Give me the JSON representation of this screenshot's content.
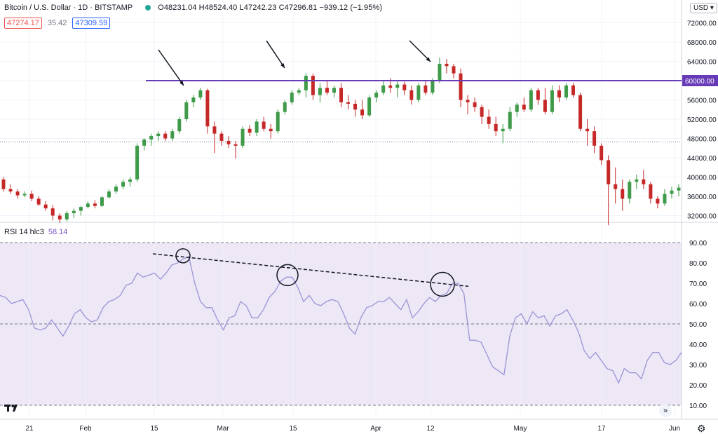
{
  "header": {
    "symbol": "Bitcoin / U.S. Dollar · 1D · BITSTAMP",
    "ohlc": "O48231.04 H48524.40 L47242.23 C47296.81 −939.12 (−1.95%)",
    "sell_price": "47274.17",
    "spread": "35.42",
    "buy_price": "47309.59",
    "currency": "USD ▾"
  },
  "price_axis": {
    "labels": [
      "72000.00",
      "68000.00",
      "64000.00",
      "60000.00",
      "56000.00",
      "52000.00",
      "48000.00",
      "44000.00",
      "40000.00",
      "36000.00",
      "32000.00"
    ],
    "highlight_label": "60000.00"
  },
  "rsi": {
    "legend": "RSI 14 hlc3",
    "value": "58.14",
    "axis_labels": [
      "90.00",
      "80.00",
      "70.00",
      "60.00",
      "50.00",
      "40.00",
      "30.00",
      "20.00",
      "10.00"
    ]
  },
  "time_axis": {
    "labels": [
      "21",
      "Feb",
      "15",
      "Mar",
      "15",
      "Apr",
      "12",
      "May",
      "17",
      "Jun"
    ]
  },
  "colors": {
    "up": "#26a69a",
    "up_body": "#3f9b49",
    "down": "#c62828",
    "resistance": "#673ab7",
    "rsi_line": "#9c94d6",
    "rsi_band": "#ede7f6"
  },
  "icons": {
    "logo": "tradingview-logo",
    "goto": "scroll-to-realtime-icon",
    "settings": "gear-icon"
  },
  "chart_data": {
    "type": "candlestick",
    "symbol": "Bitcoin / U.S. Dollar",
    "resistance_level": 60000,
    "price_range": [
      30000,
      74000
    ],
    "rsi_range": [
      0,
      100
    ],
    "rsi_levels": [
      90,
      50,
      10
    ],
    "rsi_trendline": [
      [
        83,
        260
      ],
      [
        67,
        668
      ]
    ],
    "candles": [
      [
        39500,
        40000,
        37000,
        37500
      ],
      [
        37500,
        38500,
        36500,
        37000
      ],
      [
        37000,
        37500,
        35500,
        36200
      ],
      [
        36200,
        37000,
        35800,
        36500
      ],
      [
        36500,
        37200,
        35000,
        35500
      ],
      [
        35500,
        36000,
        34000,
        34300
      ],
      [
        34300,
        35000,
        33000,
        33500
      ],
      [
        33500,
        34200,
        31000,
        32000
      ],
      [
        32000,
        32500,
        30500,
        31200
      ],
      [
        31200,
        33000,
        30800,
        32500
      ],
      [
        32500,
        33500,
        31500,
        33000
      ],
      [
        33000,
        34000,
        32000,
        33800
      ],
      [
        33800,
        35000,
        33500,
        34500
      ],
      [
        34500,
        35200,
        33500,
        34000
      ],
      [
        34000,
        36000,
        33800,
        35800
      ],
      [
        35800,
        37500,
        35500,
        37000
      ],
      [
        37000,
        38500,
        36500,
        38000
      ],
      [
        38000,
        39500,
        37500,
        39000
      ],
      [
        39000,
        40000,
        38000,
        39500
      ],
      [
        39500,
        47000,
        39000,
        46500
      ],
      [
        46500,
        48000,
        45500,
        47800
      ],
      [
        47800,
        49000,
        46500,
        48500
      ],
      [
        48500,
        49500,
        47500,
        49000
      ],
      [
        49000,
        49500,
        47500,
        48000
      ],
      [
        48000,
        50000,
        47500,
        49500
      ],
      [
        49500,
        52500,
        49000,
        52000
      ],
      [
        52000,
        56000,
        51500,
        55500
      ],
      [
        55500,
        57000,
        54500,
        56500
      ],
      [
        56500,
        58500,
        56000,
        58000
      ],
      [
        58000,
        58300,
        49000,
        50500
      ],
      [
        50500,
        51500,
        45000,
        49000
      ],
      [
        49000,
        49500,
        46500,
        47500
      ],
      [
        47500,
        48500,
        46000,
        46800
      ],
      [
        46800,
        47500,
        43800,
        46500
      ],
      [
        46500,
        50500,
        46000,
        50000
      ],
      [
        50000,
        50800,
        48500,
        49200
      ],
      [
        49200,
        52000,
        48500,
        51500
      ],
      [
        51500,
        52500,
        49500,
        50000
      ],
      [
        50000,
        51000,
        48000,
        49500
      ],
      [
        49500,
        54000,
        49000,
        53500
      ],
      [
        53500,
        56000,
        53000,
        55500
      ],
      [
        55500,
        58000,
        55000,
        57500
      ],
      [
        57500,
        58500,
        57000,
        58000
      ],
      [
        58000,
        61500,
        56500,
        61000
      ],
      [
        61000,
        61500,
        56000,
        57000
      ],
      [
        57000,
        59500,
        55500,
        58500
      ],
      [
        58500,
        60000,
        57000,
        57500
      ],
      [
        57500,
        59000,
        56500,
        58500
      ],
      [
        58500,
        59500,
        54500,
        55500
      ],
      [
        55500,
        57000,
        54000,
        55200
      ],
      [
        55200,
        56000,
        52500,
        54000
      ],
      [
        54000,
        56000,
        52000,
        52800
      ],
      [
        52800,
        57000,
        52500,
        56500
      ],
      [
        56500,
        58000,
        55500,
        57500
      ],
      [
        57500,
        60000,
        57000,
        59000
      ],
      [
        59000,
        60500,
        57500,
        58500
      ],
      [
        58500,
        60000,
        56500,
        59200
      ],
      [
        59200,
        59800,
        57000,
        58000
      ],
      [
        58000,
        59000,
        55000,
        56000
      ],
      [
        56000,
        59500,
        55500,
        59000
      ],
      [
        59000,
        60000,
        57000,
        57500
      ],
      [
        57500,
        60500,
        57000,
        60000
      ],
      [
        60000,
        64800,
        59500,
        63500
      ],
      [
        63500,
        64500,
        61500,
        63000
      ],
      [
        63000,
        63500,
        60500,
        61500
      ],
      [
        61500,
        62500,
        54500,
        56000
      ],
      [
        56000,
        57000,
        53000,
        55500
      ],
      [
        55500,
        56500,
        53500,
        54500
      ],
      [
        54500,
        55000,
        51000,
        52500
      ],
      [
        52500,
        54000,
        50000,
        51000
      ],
      [
        51000,
        52500,
        48500,
        49500
      ],
      [
        49500,
        51000,
        47000,
        50000
      ],
      [
        50000,
        54500,
        49500,
        53500
      ],
      [
        53500,
        55500,
        52500,
        55000
      ],
      [
        55000,
        56500,
        53500,
        54000
      ],
      [
        54000,
        58500,
        53500,
        58000
      ],
      [
        58000,
        58500,
        55000,
        56000
      ],
      [
        56000,
        58500,
        53000,
        53500
      ],
      [
        53500,
        59000,
        53000,
        58000
      ],
      [
        58000,
        59000,
        55500,
        56500
      ],
      [
        56500,
        59500,
        56000,
        59000
      ],
      [
        59000,
        59500,
        56500,
        57000
      ],
      [
        57000,
        57500,
        49500,
        50000
      ],
      [
        50000,
        52000,
        46500,
        49500
      ],
      [
        49500,
        50500,
        45000,
        46500
      ],
      [
        46500,
        47000,
        42500,
        43500
      ],
      [
        43500,
        44500,
        30000,
        38500
      ],
      [
        38500,
        42000,
        34500,
        37500
      ],
      [
        37500,
        39500,
        33000,
        35500
      ],
      [
        35500,
        39500,
        34500,
        39000
      ],
      [
        39000,
        40500,
        37500,
        39500
      ],
      [
        39500,
        41500,
        37500,
        38500
      ],
      [
        38500,
        39000,
        34500,
        35500
      ],
      [
        35500,
        36000,
        33500,
        34500
      ],
      [
        34500,
        37500,
        34000,
        36500
      ],
      [
        36500,
        38000,
        35500,
        37200
      ],
      [
        37200,
        38500,
        36000,
        37800
      ]
    ],
    "rsi_values": [
      64,
      63,
      60,
      61,
      62,
      57,
      48,
      47,
      48,
      52,
      48,
      44,
      49,
      55,
      57,
      53,
      51,
      52,
      58,
      61,
      62,
      64,
      69,
      70,
      75,
      73,
      74,
      75,
      72,
      75,
      79,
      80,
      82,
      83,
      70,
      61,
      58,
      58,
      52,
      47,
      53,
      54,
      61,
      59,
      53,
      53,
      57,
      63,
      66,
      71,
      73,
      73,
      68,
      61,
      64,
      60,
      59,
      61,
      62,
      61,
      55,
      48,
      45,
      53,
      58,
      59,
      61,
      61,
      63,
      60,
      57,
      62,
      53,
      56,
      60,
      63,
      61,
      64,
      65,
      70,
      70,
      65,
      42,
      42,
      41,
      35,
      29,
      27,
      25,
      44,
      53,
      55,
      50,
      56,
      53,
      54,
      49,
      54,
      55,
      57,
      52,
      46,
      37,
      33,
      36,
      32,
      28,
      27,
      21,
      28,
      26,
      26,
      23,
      32,
      36,
      36,
      31,
      30,
      32,
      36
    ]
  }
}
